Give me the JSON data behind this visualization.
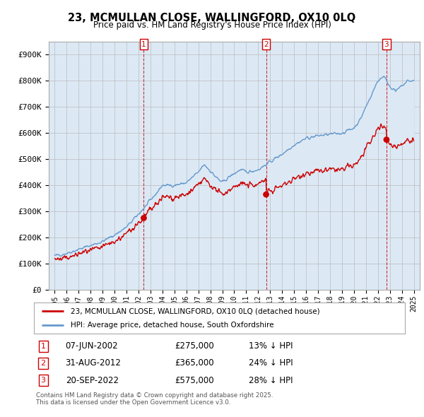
{
  "title": "23, MCMULLAN CLOSE, WALLINGFORD, OX10 0LQ",
  "subtitle": "Price paid vs. HM Land Registry's House Price Index (HPI)",
  "legend_line1": "23, MCMULLAN CLOSE, WALLINGFORD, OX10 0LQ (detached house)",
  "legend_line2": "HPI: Average price, detached house, South Oxfordshire",
  "footnote": "Contains HM Land Registry data © Crown copyright and database right 2025.\nThis data is licensed under the Open Government Licence v3.0.",
  "sales": [
    {
      "num": 1,
      "date": "07-JUN-2002",
      "price": 275000,
      "pct": "13%",
      "x": 2002.44
    },
    {
      "num": 2,
      "date": "31-AUG-2012",
      "price": 365000,
      "pct": "24%",
      "x": 2012.66
    },
    {
      "num": 3,
      "date": "20-SEP-2022",
      "price": 575000,
      "pct": "28%",
      "x": 2022.72
    }
  ],
  "sale_annotations": [
    {
      "num": 1,
      "label": "07-JUN-2002",
      "price": "£275,000",
      "pct": "13% ↓ HPI"
    },
    {
      "num": 2,
      "label": "31-AUG-2012",
      "price": "£365,000",
      "pct": "24% ↓ HPI"
    },
    {
      "num": 3,
      "label": "20-SEP-2022",
      "price": "£575,000",
      "pct": "28% ↓ HPI"
    }
  ],
  "red_color": "#cc0000",
  "blue_color": "#6699cc",
  "fill_color": "#dce9f5",
  "bg_color": "#ffffff",
  "grid_color": "#cccccc",
  "ylim": [
    0,
    950000
  ],
  "yticks": [
    0,
    100000,
    200000,
    300000,
    400000,
    500000,
    600000,
    700000,
    800000,
    900000
  ],
  "xlim": [
    1994.5,
    2025.5
  ],
  "xticks": [
    1995,
    1996,
    1997,
    1998,
    1999,
    2000,
    2001,
    2002,
    2003,
    2004,
    2005,
    2006,
    2007,
    2008,
    2009,
    2010,
    2011,
    2012,
    2013,
    2014,
    2015,
    2016,
    2017,
    2018,
    2019,
    2020,
    2021,
    2022,
    2023,
    2024,
    2025
  ]
}
